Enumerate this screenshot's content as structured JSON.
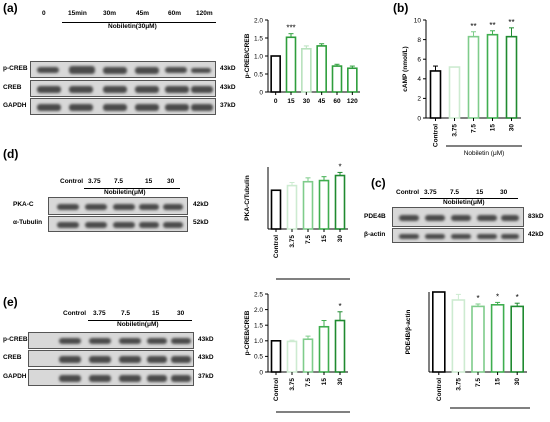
{
  "panels": {
    "a": {
      "label": "(a)",
      "lanes": [
        "0",
        "15min",
        "30m",
        "45m",
        "60m",
        "120m"
      ],
      "treatment": "Nobiletin(30μM)",
      "rows": [
        {
          "name": "p-CREB",
          "kd": "43kD"
        },
        {
          "name": "CREB",
          "kd": "43kD"
        },
        {
          "name": "GAPDH",
          "kd": "37kD"
        }
      ]
    },
    "b": {
      "label": "(b)",
      "treatment": "Nobiletin (μM)"
    },
    "c": {
      "label": "(c)",
      "control": "Control",
      "lanes": [
        "3.75",
        "7.5",
        "15",
        "30"
      ],
      "treatment": "Nobiletin(μM)",
      "rows": [
        {
          "name": "PDE4B",
          "kd": "83kD"
        },
        {
          "name": "β-actin",
          "kd": "42kD"
        }
      ]
    },
    "d": {
      "label": "(d)",
      "control": "Control",
      "lanes": [
        "3.75",
        "7.5",
        "15",
        "30"
      ],
      "treatment": "Nobiletin(μM)",
      "rows": [
        {
          "name": "PKA-C",
          "kd": "42kD"
        },
        {
          "name": "α-Tubulin",
          "kd": "52kD"
        }
      ]
    },
    "e": {
      "label": "(e)",
      "control": "Control",
      "lanes": [
        "3.75",
        "7.5",
        "15",
        "30"
      ],
      "treatment": "Nobiletin(μM)",
      "rows": [
        {
          "name": "p-CREB",
          "kd": "43kD"
        },
        {
          "name": "CREB",
          "kd": "43kD"
        },
        {
          "name": "GAPDH",
          "kd": "37kD"
        }
      ]
    }
  },
  "chart_data": [
    {
      "id": "a",
      "type": "bar",
      "ylabel": "p-CREB/CREB",
      "categories": [
        "0",
        "15",
        "30",
        "45",
        "60",
        "120"
      ],
      "values": [
        1.0,
        1.52,
        1.2,
        1.28,
        0.72,
        0.66
      ],
      "errors": [
        0.0,
        0.1,
        0.08,
        0.06,
        0.05,
        0.06
      ],
      "significance": [
        "",
        "***",
        "",
        "",
        "",
        ""
      ],
      "ylim": [
        0,
        2.0
      ],
      "yticks": [
        0,
        0.5,
        1.0,
        1.5,
        2.0
      ],
      "xlabel": "",
      "colors": [
        "#000000",
        "#2e9e3c",
        "#b8e2bd",
        "#2e9e3c",
        "#2e9e3c",
        "#2e9e3c"
      ]
    },
    {
      "id": "b",
      "type": "bar",
      "ylabel": "cAMP (nmol/L)",
      "categories": [
        "Control",
        "3.75",
        "7.5",
        "15",
        "30"
      ],
      "values": [
        4.8,
        5.2,
        8.3,
        8.5,
        8.3
      ],
      "errors": [
        0.5,
        0.0,
        0.5,
        0.4,
        0.9
      ],
      "significance": [
        "",
        "",
        "**",
        "**",
        "**"
      ],
      "ylim": [
        0,
        10
      ],
      "yticks": [
        0,
        2,
        4,
        6,
        8,
        10
      ],
      "xlabel": "",
      "colors": [
        "#000000",
        "#cdebd1",
        "#7fcc8b",
        "#3fae4f",
        "#1f8a30"
      ]
    },
    {
      "id": "c",
      "type": "bar",
      "ylabel": "PDE4B/β-actin",
      "categories": [
        "Control",
        "3.75",
        "7.5",
        "15",
        "30"
      ],
      "values": [
        1.0,
        0.9,
        0.82,
        0.84,
        0.82
      ],
      "errors": [
        0.0,
        0.07,
        0.03,
        0.03,
        0.04
      ],
      "significance": [
        "",
        "",
        "*",
        "*",
        "*"
      ],
      "ylim": [
        0,
        1.0
      ],
      "yticks": [],
      "xlabel": "",
      "colors": [
        "#000000",
        "#cdebd1",
        "#7fcc8b",
        "#3fae4f",
        "#1f8a30"
      ]
    },
    {
      "id": "d",
      "type": "bar",
      "ylabel": "PKA-C/Tubulin",
      "categories": [
        "Control",
        "3.75",
        "7.5",
        "15",
        "30"
      ],
      "values": [
        1.0,
        1.12,
        1.22,
        1.25,
        1.38
      ],
      "errors": [
        0.0,
        0.08,
        0.1,
        0.1,
        0.08
      ],
      "significance": [
        "",
        "",
        "",
        "",
        "*"
      ],
      "ylim": [
        0,
        1.6
      ],
      "yticks": [],
      "xlabel": "",
      "colors": [
        "#000000",
        "#cdebd1",
        "#7fcc8b",
        "#3fae4f",
        "#1f8a30"
      ]
    },
    {
      "id": "e",
      "type": "bar",
      "ylabel": "p-CREB/CREB",
      "categories": [
        "Control",
        "3.75",
        "7.5",
        "15",
        "30"
      ],
      "values": [
        1.0,
        0.98,
        1.05,
        1.45,
        1.65
      ],
      "errors": [
        0.0,
        0.04,
        0.1,
        0.2,
        0.28
      ],
      "significance": [
        "",
        "",
        "",
        "",
        "*"
      ],
      "ylim": [
        0,
        2.5
      ],
      "yticks": [
        0,
        0.5,
        1.0,
        1.5,
        2.0,
        2.5
      ],
      "xlabel": "",
      "colors": [
        "#000000",
        "#cdebd1",
        "#7fcc8b",
        "#3fae4f",
        "#1f8a30"
      ]
    }
  ]
}
